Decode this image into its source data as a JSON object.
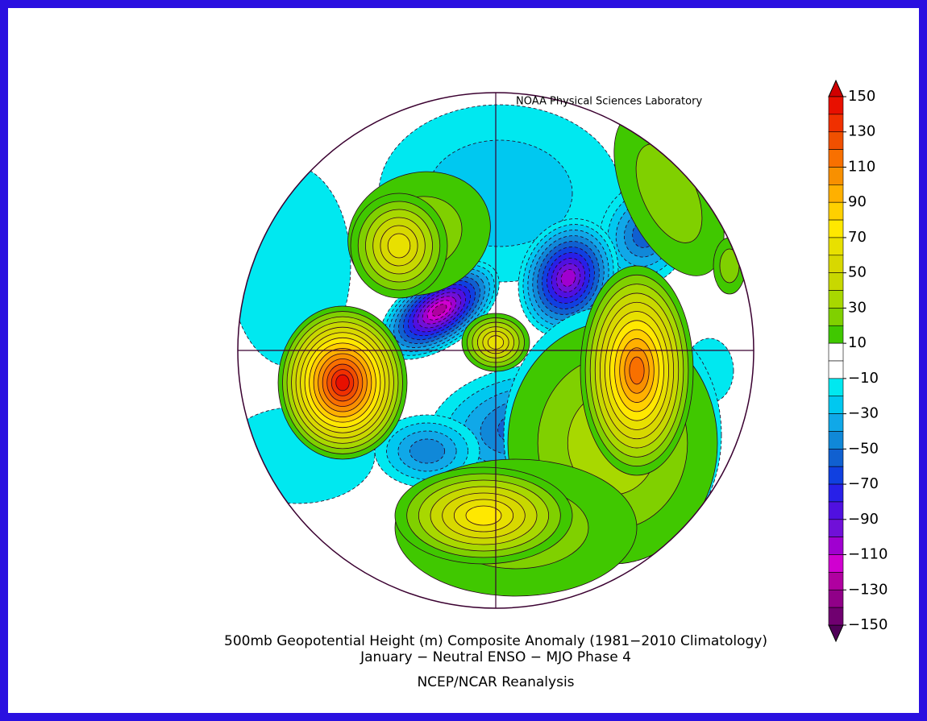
{
  "credit": "NOAA Physical Sciences Laboratory",
  "title": "500mb Geopotential Height (m) Composite Anomaly (1981−2010 Climatology)",
  "subtitle": "January − Neutral ENSO − MJO Phase 4",
  "source": "NCEP/NCAR Reanalysis",
  "colorbar": {
    "ticks": [
      150,
      130,
      110,
      90,
      70,
      50,
      30,
      10,
      {
        "value": -10,
        "label": "−10"
      },
      {
        "value": -30,
        "label": "−30"
      },
      {
        "value": -50,
        "label": "−50"
      },
      {
        "value": -70,
        "label": "−70"
      },
      {
        "value": -90,
        "label": "−90"
      },
      {
        "value": -110,
        "label": "−110"
      },
      {
        "value": -130,
        "label": "−130"
      },
      {
        "value": -150,
        "label": "−150"
      }
    ],
    "colors": [
      "#d00000",
      "#e81000",
      "#f03000",
      "#f05000",
      "#f87000",
      "#f89000",
      "#ffb000",
      "#ffd000",
      "#ffe800",
      "#e8e000",
      "#d8d800",
      "#c8d800",
      "#a8d800",
      "#80d000",
      "#40c800",
      "#ffffff",
      "#ffffff",
      "#00e8f0",
      "#00c8f0",
      "#10a8e8",
      "#1088d8",
      "#1060d0",
      "#1040e0",
      "#2820e8",
      "#5010e0",
      "#7010d8",
      "#a000d0",
      "#d000d0",
      "#b000a0",
      "#900088",
      "#700070",
      "#500058"
    ]
  }
}
